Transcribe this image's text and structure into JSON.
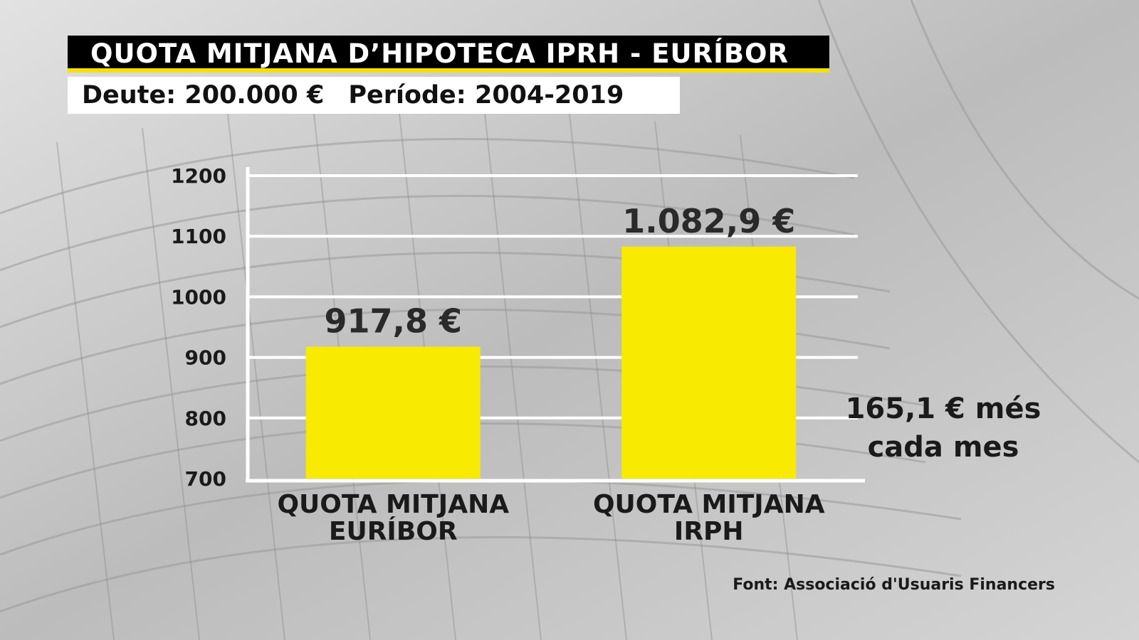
{
  "header": {
    "title": "QUOTA MITJANA D’HIPOTECA IPRH - EURÍBOR",
    "debt": "Deute: 200.000 €",
    "period": "Període: 2004-2019"
  },
  "chart_data": {
    "type": "bar",
    "categories": [
      "QUOTA MITJANA EURÍBOR",
      "QUOTA MITJANA IRPH"
    ],
    "values": [
      917.8,
      1082.9
    ],
    "value_labels": [
      "917,8 €",
      "1.082,9 €"
    ],
    "ylim": [
      700,
      1200
    ],
    "yticks": [
      1200,
      1100,
      1000,
      900,
      800,
      700
    ],
    "grid": true,
    "bar_color": "#f8ea00",
    "title": "",
    "xlabel": "",
    "ylabel": ""
  },
  "annotation": {
    "line1": "165,1 € més",
    "line2": "cada mes"
  },
  "source": "Font: Associació d'Usuaris Financers"
}
